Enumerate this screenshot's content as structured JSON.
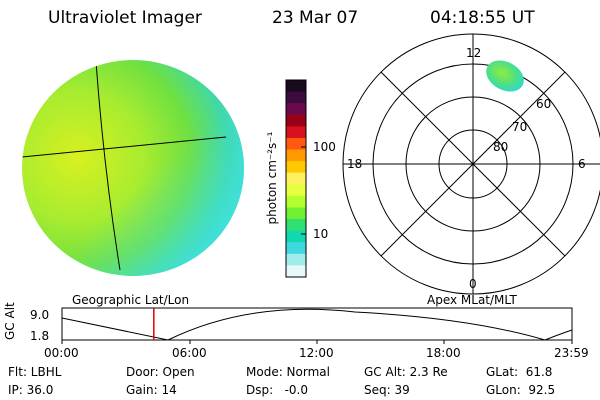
{
  "header": {
    "title": "Ultraviolet Imager",
    "date": "23 Mar 07",
    "time": "04:18:55 UT"
  },
  "colorbar": {
    "unit": "photon cm⁻²s⁻¹",
    "ticks": [
      "100",
      "10"
    ],
    "colors": [
      "#1a0a1e",
      "#3a0b3c",
      "#6a0a4a",
      "#9a0016",
      "#d81020",
      "#ff5a10",
      "#ff9a00",
      "#ffc800",
      "#fff060",
      "#e6ff40",
      "#b4ff30",
      "#70f030",
      "#30e070",
      "#10d8b0",
      "#40d8e0",
      "#a0ece8",
      "#e6f8f8"
    ]
  },
  "polar": {
    "mlt": {
      "top": "12",
      "left": "18",
      "right": "6",
      "bottom": "0"
    },
    "lat": [
      "60",
      "70",
      "80"
    ]
  },
  "labels": {
    "left_panel": "Geographic Lat/Lon",
    "right_panel": "Apex MLat/MLT"
  },
  "alt_plot": {
    "ylabel": "GC Alt",
    "ymax": "9.0",
    "ymin": "1.8",
    "times": [
      "00:00",
      "06:00",
      "12:00",
      "18:00",
      "23:59"
    ],
    "current_fraction": 0.18,
    "marker_color": "#e00000"
  },
  "info": {
    "filter": "Flt: LBHL",
    "ip": "IP: 36.0",
    "door": "Door: Open",
    "gain": "Gain: 14",
    "mode": "Mode: Normal",
    "dsp": "Dsp:   -0.0",
    "gc_alt": "GC Alt: 2.3 Re",
    "seq": "Seq: 39",
    "glat": "GLat:  61.8",
    "glon": "GLon:  92.5"
  }
}
